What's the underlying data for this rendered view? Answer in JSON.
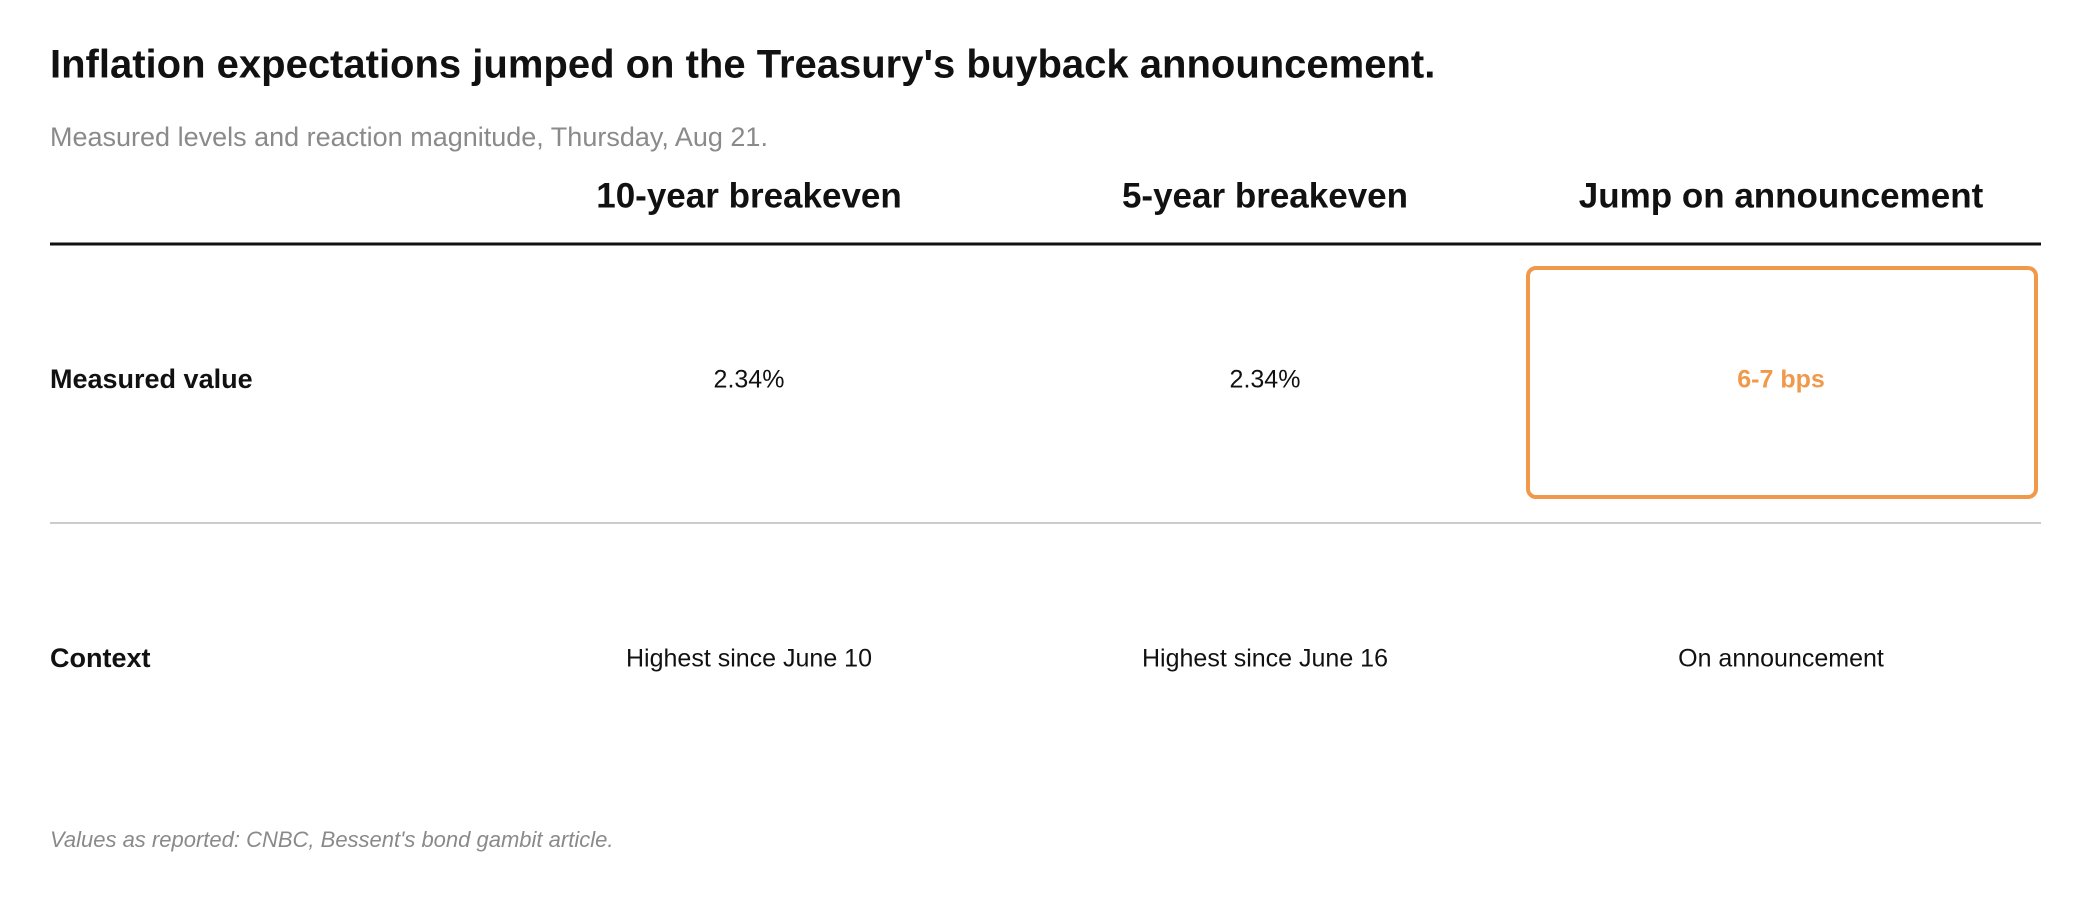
{
  "header": {
    "title": "Inflation expectations jumped on the Treasury's buyback announcement.",
    "subtitle": "Measured levels and reaction magnitude, Thursday, Aug 21."
  },
  "table": {
    "columns": [
      "10-year breakeven",
      "5-year breakeven",
      "Jump on announcement"
    ],
    "rows": [
      {
        "label": "Measured value",
        "cells": [
          "2.34%",
          "2.34%",
          "6-7 bps"
        ]
      },
      {
        "label": "Context",
        "cells": [
          "Highest since June 10",
          "Highest since June 16",
          "On announcement"
        ]
      }
    ]
  },
  "footnote": "Values as reported: CNBC, Bessent's bond gambit article."
}
